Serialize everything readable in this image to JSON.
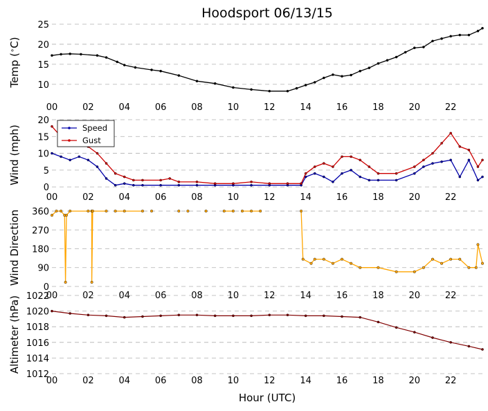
{
  "title": "Hoodsport 06/13/15",
  "xlabel": "Hour (UTC)",
  "x_ticks": [
    "00",
    "02",
    "04",
    "06",
    "08",
    "10",
    "12",
    "14",
    "16",
    "18",
    "20",
    "22"
  ],
  "chart_data": [
    {
      "type": "line",
      "ylabel": "Temp (°C)",
      "ylabel_main": "Temp (",
      "ylabel_degree": "∘",
      "ylabel_unit": "C)",
      "xlim": [
        0,
        23.75
      ],
      "ylim": [
        6,
        25
      ],
      "yticks": [
        10,
        15,
        20,
        25
      ],
      "grid": true,
      "series": [
        {
          "color": "#000000",
          "points": [
            [
              0,
              17.2
            ],
            [
              0.5,
              17.5
            ],
            [
              1,
              17.6
            ],
            [
              1.6,
              17.5
            ],
            [
              2.5,
              17.2
            ],
            [
              3,
              16.7
            ],
            [
              3.6,
              15.6
            ],
            [
              4,
              14.8
            ],
            [
              4.6,
              14.2
            ],
            [
              5.5,
              13.6
            ],
            [
              6,
              13.3
            ],
            [
              7,
              12.2
            ],
            [
              8,
              10.8
            ],
            [
              9,
              10.2
            ],
            [
              10,
              9.2
            ],
            [
              11,
              8.7
            ],
            [
              12,
              8.3
            ],
            [
              13,
              8.3
            ],
            [
              13.5,
              9.0
            ],
            [
              14,
              9.8
            ],
            [
              14.5,
              10.5
            ],
            [
              15,
              11.6
            ],
            [
              15.5,
              12.4
            ],
            [
              16,
              12.0
            ],
            [
              16.5,
              12.3
            ],
            [
              17,
              13.3
            ],
            [
              17.5,
              14.1
            ],
            [
              18,
              15.2
            ],
            [
              18.5,
              16.0
            ],
            [
              19,
              16.8
            ],
            [
              19.5,
              18.0
            ],
            [
              20,
              19.1
            ],
            [
              20.5,
              19.3
            ],
            [
              21,
              20.8
            ],
            [
              21.5,
              21.4
            ],
            [
              22,
              22.0
            ],
            [
              22.5,
              22.3
            ],
            [
              23,
              22.3
            ],
            [
              23.5,
              23.3
            ],
            [
              23.75,
              24.0
            ]
          ]
        }
      ]
    },
    {
      "type": "line",
      "ylabel": "Wind (mph)",
      "xlim": [
        0,
        23.75
      ],
      "ylim": [
        -1,
        20
      ],
      "yticks": [
        0,
        5,
        10,
        15,
        20
      ],
      "grid": true,
      "legend": "top-left",
      "series": [
        {
          "name": "Speed",
          "color": "#0000aa",
          "points": [
            [
              0,
              10
            ],
            [
              0.5,
              9
            ],
            [
              1,
              8
            ],
            [
              1.5,
              9
            ],
            [
              2,
              8
            ],
            [
              2.5,
              6
            ],
            [
              3,
              2.5
            ],
            [
              3.5,
              0.5
            ],
            [
              4,
              1
            ],
            [
              4.5,
              0.5
            ],
            [
              5,
              0.5
            ],
            [
              6,
              0.5
            ],
            [
              7,
              0.5
            ],
            [
              8,
              0.5
            ],
            [
              9,
              0.5
            ],
            [
              10,
              0.5
            ],
            [
              11,
              0.5
            ],
            [
              12,
              0.5
            ],
            [
              13,
              0.5
            ],
            [
              13.75,
              0.5
            ],
            [
              14,
              3
            ],
            [
              14.5,
              4
            ],
            [
              15,
              3
            ],
            [
              15.5,
              1.5
            ],
            [
              16,
              4
            ],
            [
              16.5,
              5
            ],
            [
              17,
              3
            ],
            [
              17.5,
              2
            ],
            [
              18,
              2
            ],
            [
              19,
              2
            ],
            [
              20,
              4
            ],
            [
              20.5,
              6
            ],
            [
              21,
              7
            ],
            [
              21.5,
              7.5
            ],
            [
              22,
              8
            ],
            [
              22.5,
              3
            ],
            [
              23,
              8
            ],
            [
              23.5,
              2
            ],
            [
              23.75,
              3
            ]
          ]
        },
        {
          "name": "Gust",
          "color": "#cc0000",
          "points": [
            [
              0,
              18
            ],
            [
              0.5,
              15
            ],
            [
              1,
              14
            ],
            [
              1.5,
              13.5
            ],
            [
              2,
              12
            ],
            [
              2.5,
              10
            ],
            [
              3,
              7
            ],
            [
              3.5,
              4
            ],
            [
              4,
              3
            ],
            [
              4.5,
              2
            ],
            [
              5,
              2
            ],
            [
              6,
              2
            ],
            [
              6.5,
              2.5
            ],
            [
              7,
              1.5
            ],
            [
              8,
              1.5
            ],
            [
              9,
              1
            ],
            [
              10,
              1
            ],
            [
              11,
              1.5
            ],
            [
              12,
              1
            ],
            [
              13,
              1
            ],
            [
              13.75,
              1
            ],
            [
              14,
              4
            ],
            [
              14.5,
              6
            ],
            [
              15,
              7
            ],
            [
              15.5,
              6
            ],
            [
              16,
              9
            ],
            [
              16.5,
              9
            ],
            [
              17,
              8
            ],
            [
              17.5,
              6
            ],
            [
              18,
              4
            ],
            [
              19,
              4
            ],
            [
              20,
              6
            ],
            [
              20.5,
              8
            ],
            [
              21,
              10
            ],
            [
              21.5,
              13
            ],
            [
              22,
              16
            ],
            [
              22.5,
              12
            ],
            [
              23,
              11
            ],
            [
              23.5,
              6
            ],
            [
              23.75,
              8
            ]
          ]
        }
      ],
      "legend_entries": [
        "Speed",
        "Gust"
      ]
    },
    {
      "type": "line",
      "ylabel": "Wind Direction",
      "xlim": [
        0,
        23.75
      ],
      "ylim": [
        -10,
        380
      ],
      "yticks": [
        0,
        90,
        180,
        270,
        360
      ],
      "grid": true,
      "series": [
        {
          "color": "#ffa500",
          "segments": [
            [
              [
                0,
                340
              ],
              [
                0.25,
                360
              ],
              [
                0.5,
                360
              ],
              [
                0.7,
                340
              ],
              [
                0.75,
                20
              ],
              [
                0.8,
                340
              ],
              [
                1,
                360
              ],
              [
                2.0,
                360
              ],
              [
                2.2,
                360
              ],
              [
                2.2,
                20
              ],
              [
                2.25,
                360
              ],
              [
                3,
                360
              ]
            ],
            [
              [
                3.5,
                360
              ],
              [
                4,
                360
              ],
              [
                5,
                360
              ]
            ],
            [
              [
                5.5,
                360
              ]
            ],
            [
              [
                7,
                360
              ]
            ],
            [
              [
                7.5,
                360
              ]
            ],
            [
              [
                8.5,
                360
              ]
            ],
            [
              [
                9.5,
                360
              ],
              [
                10,
                360
              ]
            ],
            [
              [
                10.5,
                360
              ],
              [
                11,
                360
              ],
              [
                11.5,
                360
              ]
            ],
            [
              [
                13.75,
                360
              ],
              [
                13.85,
                130
              ],
              [
                14.3,
                110
              ],
              [
                14.5,
                130
              ],
              [
                15,
                130
              ],
              [
                15.5,
                110
              ],
              [
                16,
                130
              ],
              [
                16.5,
                110
              ],
              [
                17,
                90
              ],
              [
                18,
                90
              ],
              [
                19,
                70
              ],
              [
                20,
                70
              ],
              [
                20.5,
                90
              ],
              [
                21,
                130
              ],
              [
                21.5,
                110
              ],
              [
                22,
                130
              ],
              [
                22.5,
                130
              ],
              [
                23,
                90
              ],
              [
                23.4,
                90
              ],
              [
                23.5,
                200
              ],
              [
                23.75,
                110
              ]
            ]
          ]
        }
      ]
    },
    {
      "type": "line",
      "ylabel": "Altimeter (hPa)",
      "xlim": [
        0,
        23.75
      ],
      "ylim": [
        1012,
        1022
      ],
      "yticks": [
        1012,
        1014,
        1016,
        1018,
        1020,
        1022
      ],
      "grid": true,
      "series": [
        {
          "color": "#800000",
          "points": [
            [
              0,
              1020.0
            ],
            [
              1,
              1019.7
            ],
            [
              2,
              1019.5
            ],
            [
              3,
              1019.4
            ],
            [
              4,
              1019.2
            ],
            [
              5,
              1019.3
            ],
            [
              6,
              1019.4
            ],
            [
              7,
              1019.5
            ],
            [
              8,
              1019.5
            ],
            [
              9,
              1019.4
            ],
            [
              10,
              1019.4
            ],
            [
              11,
              1019.4
            ],
            [
              12,
              1019.5
            ],
            [
              13,
              1019.5
            ],
            [
              14,
              1019.4
            ],
            [
              15,
              1019.4
            ],
            [
              16,
              1019.3
            ],
            [
              17,
              1019.2
            ],
            [
              18,
              1018.6
            ],
            [
              19,
              1017.9
            ],
            [
              20,
              1017.3
            ],
            [
              21,
              1016.6
            ],
            [
              22,
              1016.0
            ],
            [
              23,
              1015.5
            ],
            [
              23.75,
              1015.1
            ]
          ]
        }
      ]
    }
  ]
}
